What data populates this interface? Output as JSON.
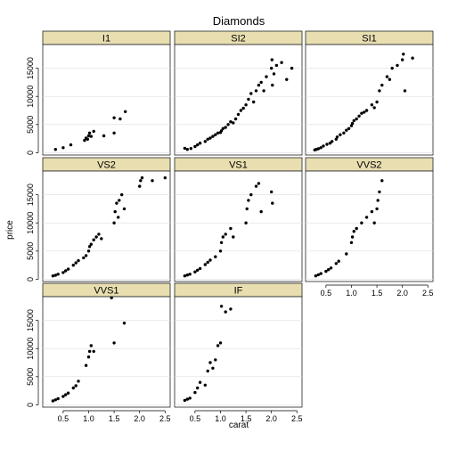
{
  "chart_data": {
    "type": "scatter",
    "title": "Diamonds",
    "xlabel": "carat",
    "ylabel": "price",
    "xlim": [
      0.1,
      2.6
    ],
    "ylim": [
      -400,
      19200
    ],
    "x_ticks": [
      0.5,
      1.0,
      1.5,
      2.0,
      2.5
    ],
    "x_tick_labels": [
      "0.5",
      "1.0",
      "1.5",
      "2.0",
      "2.5"
    ],
    "y_ticks": [
      0,
      5000,
      10000,
      15000
    ],
    "y_tick_labels": [
      "0",
      "5000",
      "10000",
      "15000"
    ],
    "grid": true,
    "layout": {
      "cols": 3,
      "rows": 3
    },
    "facets": [
      {
        "label": "I1",
        "points": [
          [
            0.35,
            600
          ],
          [
            0.5,
            900
          ],
          [
            0.65,
            1400
          ],
          [
            0.92,
            2200
          ],
          [
            0.95,
            2600
          ],
          [
            1.0,
            3000
          ],
          [
            1.02,
            3500
          ],
          [
            1.05,
            2900
          ],
          [
            1.1,
            3800
          ],
          [
            1.3,
            3000
          ],
          [
            1.5,
            3500
          ],
          [
            1.5,
            6200
          ],
          [
            1.62,
            6000
          ],
          [
            1.72,
            7300
          ],
          [
            0.98,
            2400
          ]
        ]
      },
      {
        "label": "SI2",
        "points": [
          [
            0.3,
            800
          ],
          [
            0.35,
            600
          ],
          [
            0.42,
            750
          ],
          [
            0.5,
            1100
          ],
          [
            0.55,
            1400
          ],
          [
            0.6,
            1700
          ],
          [
            0.7,
            2000
          ],
          [
            0.75,
            2400
          ],
          [
            0.8,
            2600
          ],
          [
            0.85,
            2900
          ],
          [
            0.9,
            3200
          ],
          [
            0.95,
            3500
          ],
          [
            1.0,
            3600
          ],
          [
            1.02,
            3900
          ],
          [
            1.05,
            4300
          ],
          [
            1.1,
            4500
          ],
          [
            1.15,
            5000
          ],
          [
            1.2,
            5500
          ],
          [
            1.25,
            5300
          ],
          [
            1.3,
            6000
          ],
          [
            1.35,
            6800
          ],
          [
            1.4,
            7500
          ],
          [
            1.45,
            7900
          ],
          [
            1.5,
            8500
          ],
          [
            1.55,
            9500
          ],
          [
            1.6,
            10500
          ],
          [
            1.7,
            11000
          ],
          [
            1.75,
            12000
          ],
          [
            1.8,
            12500
          ],
          [
            1.9,
            13500
          ],
          [
            2.0,
            15000
          ],
          [
            2.01,
            16500
          ],
          [
            2.05,
            14000
          ],
          [
            2.1,
            15500
          ],
          [
            2.2,
            16000
          ],
          [
            2.3,
            13000
          ],
          [
            2.4,
            15000
          ],
          [
            1.65,
            9000
          ],
          [
            1.85,
            11000
          ],
          [
            2.02,
            12000
          ]
        ]
      },
      {
        "label": "SI1",
        "points": [
          [
            0.28,
            500
          ],
          [
            0.31,
            600
          ],
          [
            0.35,
            700
          ],
          [
            0.4,
            900
          ],
          [
            0.45,
            1200
          ],
          [
            0.52,
            1500
          ],
          [
            0.58,
            1700
          ],
          [
            0.62,
            2000
          ],
          [
            0.7,
            2400
          ],
          [
            0.72,
            2800
          ],
          [
            0.78,
            3200
          ],
          [
            0.85,
            3500
          ],
          [
            0.9,
            4000
          ],
          [
            0.95,
            4300
          ],
          [
            1.0,
            4800
          ],
          [
            1.02,
            5200
          ],
          [
            1.05,
            5700
          ],
          [
            1.1,
            6000
          ],
          [
            1.15,
            6500
          ],
          [
            1.2,
            7000
          ],
          [
            1.3,
            7500
          ],
          [
            1.4,
            8500
          ],
          [
            1.5,
            9000
          ],
          [
            1.55,
            11000
          ],
          [
            1.6,
            12000
          ],
          [
            1.7,
            13500
          ],
          [
            1.75,
            13000
          ],
          [
            1.8,
            15000
          ],
          [
            1.9,
            15500
          ],
          [
            2.0,
            16500
          ],
          [
            2.02,
            17500
          ],
          [
            2.2,
            16800
          ],
          [
            2.05,
            11000
          ],
          [
            1.45,
            8000
          ],
          [
            1.25,
            7200
          ]
        ]
      },
      {
        "label": "VS2",
        "points": [
          [
            0.3,
            600
          ],
          [
            0.35,
            700
          ],
          [
            0.4,
            900
          ],
          [
            0.5,
            1200
          ],
          [
            0.55,
            1500
          ],
          [
            0.6,
            1800
          ],
          [
            0.7,
            2500
          ],
          [
            0.75,
            2900
          ],
          [
            0.8,
            3300
          ],
          [
            0.9,
            3800
          ],
          [
            0.95,
            4200
          ],
          [
            1.0,
            5000
          ],
          [
            1.02,
            5800
          ],
          [
            1.05,
            6200
          ],
          [
            1.1,
            7000
          ],
          [
            1.15,
            7500
          ],
          [
            1.2,
            8000
          ],
          [
            1.25,
            7200
          ],
          [
            1.5,
            10000
          ],
          [
            1.52,
            12000
          ],
          [
            1.55,
            13500
          ],
          [
            1.6,
            14000
          ],
          [
            1.65,
            15000
          ],
          [
            1.7,
            12500
          ],
          [
            2.0,
            16500
          ],
          [
            2.02,
            17500
          ],
          [
            2.05,
            18000
          ],
          [
            2.25,
            17500
          ],
          [
            2.5,
            18000
          ],
          [
            1.58,
            11000
          ]
        ]
      },
      {
        "label": "VS1",
        "points": [
          [
            0.3,
            600
          ],
          [
            0.35,
            750
          ],
          [
            0.4,
            900
          ],
          [
            0.5,
            1300
          ],
          [
            0.55,
            1600
          ],
          [
            0.6,
            1900
          ],
          [
            0.7,
            2600
          ],
          [
            0.75,
            3000
          ],
          [
            0.8,
            3400
          ],
          [
            0.9,
            4000
          ],
          [
            1.0,
            5000
          ],
          [
            1.02,
            6500
          ],
          [
            1.05,
            7500
          ],
          [
            1.1,
            8000
          ],
          [
            1.2,
            9000
          ],
          [
            1.25,
            7500
          ],
          [
            1.5,
            10000
          ],
          [
            1.52,
            12500
          ],
          [
            1.55,
            14000
          ],
          [
            1.6,
            15000
          ],
          [
            1.7,
            16500
          ],
          [
            1.75,
            17000
          ],
          [
            1.8,
            12000
          ],
          [
            2.0,
            15500
          ],
          [
            2.02,
            13500
          ]
        ]
      },
      {
        "label": "VVS2",
        "points": [
          [
            0.3,
            600
          ],
          [
            0.35,
            800
          ],
          [
            0.4,
            1000
          ],
          [
            0.5,
            1400
          ],
          [
            0.55,
            1700
          ],
          [
            0.6,
            2000
          ],
          [
            0.7,
            2800
          ],
          [
            0.75,
            3200
          ],
          [
            0.9,
            4500
          ],
          [
            1.0,
            6500
          ],
          [
            1.02,
            7500
          ],
          [
            1.05,
            8500
          ],
          [
            1.1,
            9000
          ],
          [
            1.2,
            10000
          ],
          [
            1.3,
            11000
          ],
          [
            1.4,
            12000
          ],
          [
            1.5,
            12500
          ],
          [
            1.52,
            14000
          ],
          [
            1.55,
            15500
          ],
          [
            1.6,
            17500
          ],
          [
            1.45,
            10000
          ]
        ]
      },
      {
        "label": "VVS1",
        "points": [
          [
            0.3,
            700
          ],
          [
            0.35,
            900
          ],
          [
            0.4,
            1100
          ],
          [
            0.5,
            1500
          ],
          [
            0.55,
            1800
          ],
          [
            0.6,
            2100
          ],
          [
            0.7,
            3000
          ],
          [
            0.75,
            3400
          ],
          [
            0.8,
            4200
          ],
          [
            0.95,
            7000
          ],
          [
            1.0,
            8500
          ],
          [
            1.02,
            9500
          ],
          [
            1.05,
            10500
          ],
          [
            1.1,
            9500
          ],
          [
            1.45,
            19000
          ],
          [
            1.5,
            11000
          ],
          [
            1.7,
            14500
          ]
        ]
      },
      {
        "label": "IF",
        "points": [
          [
            0.3,
            800
          ],
          [
            0.35,
            1000
          ],
          [
            0.4,
            1200
          ],
          [
            0.5,
            2200
          ],
          [
            0.55,
            3000
          ],
          [
            0.6,
            4000
          ],
          [
            0.75,
            6000
          ],
          [
            0.8,
            7500
          ],
          [
            0.85,
            6500
          ],
          [
            0.9,
            8000
          ],
          [
            0.95,
            10500
          ],
          [
            1.0,
            11000
          ],
          [
            1.02,
            17500
          ],
          [
            1.1,
            16500
          ],
          [
            1.2,
            17000
          ],
          [
            0.7,
            3500
          ]
        ]
      }
    ]
  }
}
